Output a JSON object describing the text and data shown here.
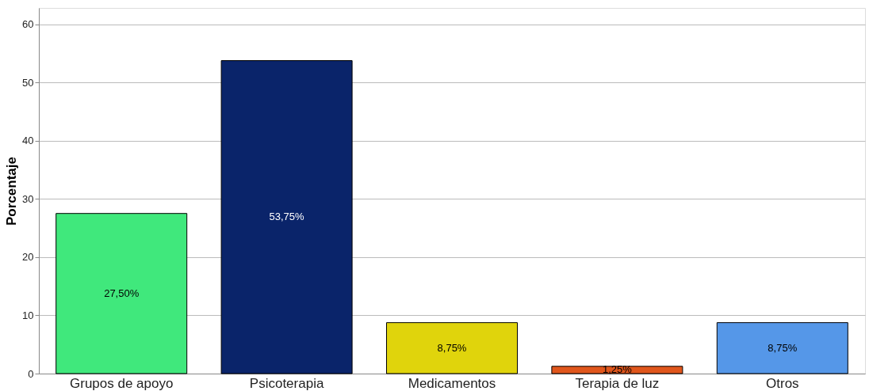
{
  "chart_data": {
    "type": "bar",
    "ylabel": "Porcentaje",
    "categories": [
      "Grupos de apoyo",
      "Psicoterapia",
      "Medicamentos",
      "Terapia de luz",
      "Otros"
    ],
    "values": [
      27.5,
      53.75,
      8.75,
      1.25,
      8.75
    ],
    "colors": [
      "#40e87c",
      "#0a246a",
      "#e0d40c",
      "#e0561c",
      "#5597e8"
    ],
    "value_labels": [
      "27,50%",
      "53,75%",
      "8,75%",
      "1,25%",
      "8,75%"
    ],
    "ylim": [
      0,
      62.8
    ],
    "yticks": [
      0,
      10,
      20,
      30,
      40,
      50,
      60
    ],
    "grid": "y",
    "legend": false
  }
}
